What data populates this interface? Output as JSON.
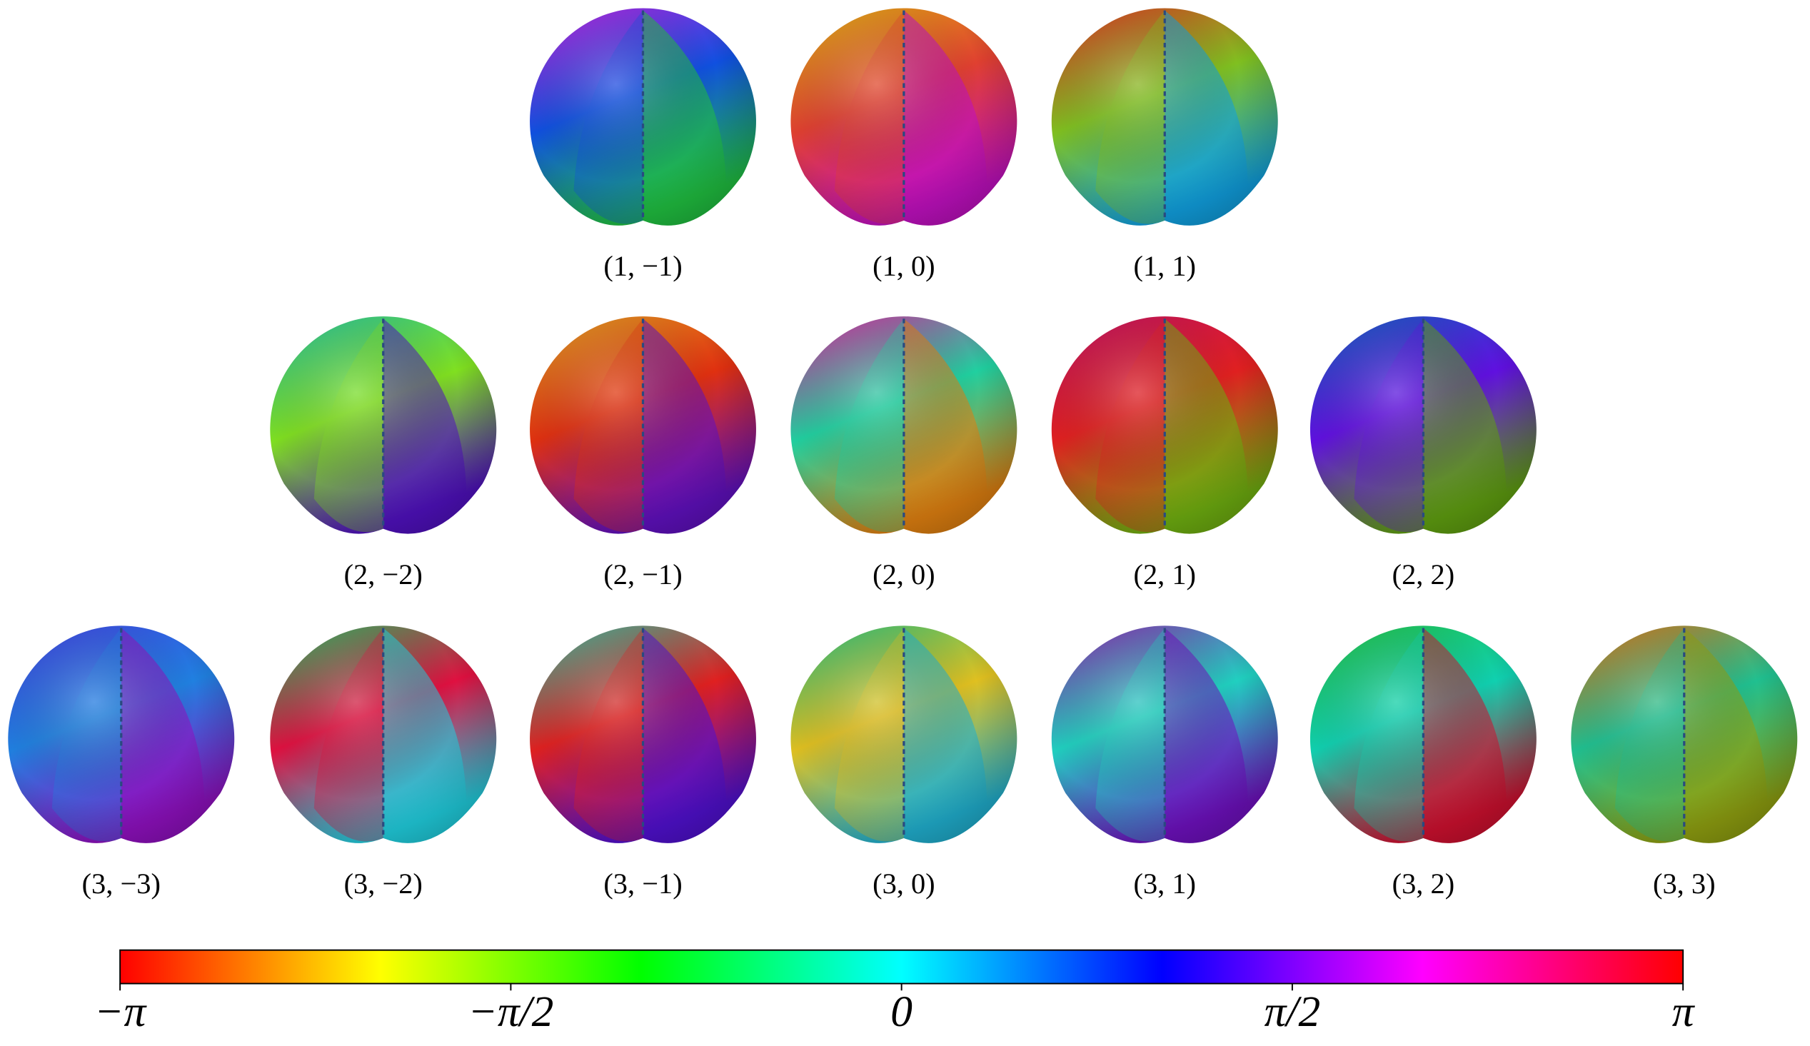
{
  "panels": [
    {
      "label": "(1, −1)"
    },
    {
      "label": "(1, 0)"
    },
    {
      "label": "(1, 1)"
    },
    {
      "label": "(2, −2)"
    },
    {
      "label": "(2, −1)"
    },
    {
      "label": "(2, 0)"
    },
    {
      "label": "(2, 1)"
    },
    {
      "label": "(2, 2)"
    },
    {
      "label": "(3, −3)"
    },
    {
      "label": "(3, −2)"
    },
    {
      "label": "(3, −1)"
    },
    {
      "label": "(3, 0)"
    },
    {
      "label": "(3, 1)"
    },
    {
      "label": "(3, 2)"
    },
    {
      "label": "(3, 3)"
    }
  ],
  "colorbar": {
    "lim": [
      -3.1416,
      3.1416
    ],
    "ticks": [
      {
        "value": -3.1416,
        "label": "−π"
      },
      {
        "value": -1.5708,
        "label": "−π/2"
      },
      {
        "value": 0,
        "label": "0"
      },
      {
        "value": 1.5708,
        "label": "π/2"
      },
      {
        "value": 3.1416,
        "label": "π"
      }
    ],
    "colors": [
      "#ff0000",
      "#ffff00",
      "#00ff00",
      "#00ffff",
      "#0000ff",
      "#ff00ff",
      "#ff0000"
    ]
  }
}
